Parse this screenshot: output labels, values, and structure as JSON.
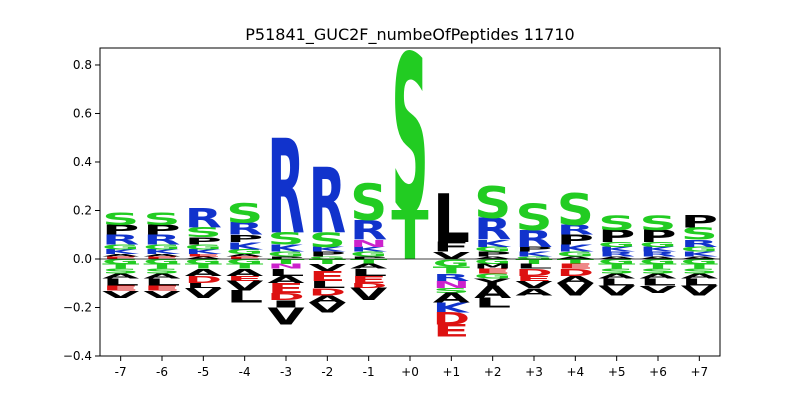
{
  "chart_data": {
    "type": "sequence-logo",
    "title": "P51841_GUC2F_numbeOfPeptides 11710",
    "xlabel": "",
    "ylabel": "",
    "ylim": [
      -0.4,
      0.87
    ],
    "yticks": [
      -0.4,
      -0.2,
      0.0,
      0.2,
      0.4,
      0.6,
      0.8
    ],
    "ytick_labels": [
      "−0.4",
      "−0.2",
      "0.0",
      "0.2",
      "0.4",
      "0.6",
      "0.8"
    ],
    "categories": [
      "-7",
      "-6",
      "-5",
      "-4",
      "-3",
      "-2",
      "-1",
      "+0",
      "+1",
      "+2",
      "+3",
      "+4",
      "+5",
      "+6",
      "+7"
    ],
    "grid": false,
    "legend": "none",
    "colors": {
      "S": "#22cc22",
      "T": "#22cc22",
      "G": "#22cc22",
      "R": "#1133cc",
      "K": "#1133cc",
      "H": "#1133cc",
      "D": "#dd1111",
      "E": "#dd1111",
      "N": "#cc22cc",
      "Q": "#cc22cc",
      "P": "#000000",
      "L": "#000000",
      "V": "#000000",
      "A": "#000000",
      "I": "#000000",
      "M": "#000000",
      "F": "#000000",
      "W": "#000000",
      "Y": "#000000",
      "C": "#000000"
    },
    "positions": [
      {
        "label": "-7",
        "pos": [
          [
            "S",
            0.05
          ],
          [
            "R",
            0.04
          ],
          [
            "P",
            0.04
          ],
          [
            "K",
            0.02
          ],
          [
            "G",
            0.02
          ],
          [
            "E",
            0.01
          ],
          [
            "A",
            0.01
          ]
        ],
        "neg": [
          [
            "G",
            0.02
          ],
          [
            "T",
            0.02
          ],
          [
            "S",
            0.02
          ],
          [
            "A",
            0.02
          ],
          [
            "L",
            0.03
          ],
          [
            "E",
            0.02
          ],
          [
            "V",
            0.03
          ]
        ]
      },
      {
        "label": "-6",
        "pos": [
          [
            "S",
            0.05
          ],
          [
            "R",
            0.04
          ],
          [
            "P",
            0.04
          ],
          [
            "K",
            0.02
          ],
          [
            "G",
            0.02
          ],
          [
            "E",
            0.01
          ],
          [
            "A",
            0.01
          ]
        ],
        "neg": [
          [
            "G",
            0.02
          ],
          [
            "T",
            0.02
          ],
          [
            "S",
            0.02
          ],
          [
            "A",
            0.02
          ],
          [
            "L",
            0.03
          ],
          [
            "E",
            0.02
          ],
          [
            "V",
            0.03
          ]
        ]
      },
      {
        "label": "-5",
        "pos": [
          [
            "R",
            0.08
          ],
          [
            "S",
            0.04
          ],
          [
            "P",
            0.03
          ],
          [
            "K",
            0.02
          ],
          [
            "G",
            0.02
          ],
          [
            "A",
            0.01
          ],
          [
            "E",
            0.01
          ]
        ],
        "neg": [
          [
            "G",
            0.02
          ],
          [
            "T",
            0.02
          ],
          [
            "A",
            0.03
          ],
          [
            "D",
            0.03
          ],
          [
            "L",
            0.02
          ],
          [
            "V",
            0.04
          ]
        ]
      },
      {
        "label": "-4",
        "pos": [
          [
            "S",
            0.08
          ],
          [
            "R",
            0.05
          ],
          [
            "K",
            0.03
          ],
          [
            "P",
            0.03
          ],
          [
            "G",
            0.02
          ],
          [
            "E",
            0.01
          ],
          [
            "A",
            0.01
          ]
        ],
        "neg": [
          [
            "G",
            0.02
          ],
          [
            "T",
            0.02
          ],
          [
            "A",
            0.03
          ],
          [
            "E",
            0.02
          ],
          [
            "V",
            0.04
          ],
          [
            "L",
            0.05
          ]
        ]
      },
      {
        "label": "-3",
        "pos": [
          [
            "R",
            0.39
          ],
          [
            "S",
            0.05
          ],
          [
            "K",
            0.03
          ],
          [
            "G",
            0.02
          ],
          [
            "P",
            0.01
          ]
        ],
        "neg": [
          [
            "T",
            0.02
          ],
          [
            "N",
            0.02
          ],
          [
            "L",
            0.03
          ],
          [
            "A",
            0.03
          ],
          [
            "E",
            0.04
          ],
          [
            "D",
            0.03
          ],
          [
            "I",
            0.03
          ],
          [
            "V",
            0.07
          ]
        ]
      },
      {
        "label": "-2",
        "pos": [
          [
            "R",
            0.27
          ],
          [
            "S",
            0.06
          ],
          [
            "P",
            0.02
          ],
          [
            "K",
            0.02
          ],
          [
            "G",
            0.01
          ]
        ],
        "neg": [
          [
            "T",
            0.02
          ],
          [
            "V",
            0.03
          ],
          [
            "E",
            0.04
          ],
          [
            "L",
            0.03
          ],
          [
            "D",
            0.03
          ],
          [
            "A",
            0.03
          ],
          [
            "V",
            0.04
          ]
        ]
      },
      {
        "label": "-1",
        "pos": [
          [
            "S",
            0.15
          ],
          [
            "R",
            0.08
          ],
          [
            "N",
            0.03
          ],
          [
            "G",
            0.02
          ],
          [
            "K",
            0.02
          ],
          [
            "P",
            0.01
          ]
        ],
        "neg": [
          [
            "T",
            0.02
          ],
          [
            "A",
            0.02
          ],
          [
            "L",
            0.03
          ],
          [
            "E",
            0.03
          ],
          [
            "D",
            0.02
          ],
          [
            "V",
            0.05
          ]
        ]
      },
      {
        "label": "+0",
        "pos": [
          [
            "S",
            0.65
          ],
          [
            "T",
            0.2
          ]
        ],
        "neg": []
      },
      {
        "label": "+1",
        "pos": [
          [
            "L",
            0.2
          ],
          [
            "F",
            0.04
          ],
          [
            "V",
            0.03
          ]
        ],
        "neg": [
          [
            "G",
            0.03
          ],
          [
            "T",
            0.03
          ],
          [
            "R",
            0.03
          ],
          [
            "N",
            0.03
          ],
          [
            "S",
            0.02
          ],
          [
            "A",
            0.04
          ],
          [
            "K",
            0.04
          ],
          [
            "D",
            0.05
          ],
          [
            "E",
            0.05
          ]
        ]
      },
      {
        "label": "+2",
        "pos": [
          [
            "S",
            0.13
          ],
          [
            "R",
            0.09
          ],
          [
            "K",
            0.03
          ],
          [
            "P",
            0.02
          ],
          [
            "G",
            0.02
          ],
          [
            "A",
            0.01
          ]
        ],
        "neg": [
          [
            "G",
            0.02
          ],
          [
            "M",
            0.02
          ],
          [
            "E",
            0.02
          ],
          [
            "G",
            0.02
          ],
          [
            "Y",
            0.03
          ],
          [
            "A",
            0.05
          ],
          [
            "L",
            0.04
          ]
        ]
      },
      {
        "label": "+3",
        "pos": [
          [
            "S",
            0.11
          ],
          [
            "R",
            0.07
          ],
          [
            "K",
            0.02
          ],
          [
            "P",
            0.02
          ],
          [
            "G",
            0.01
          ]
        ],
        "neg": [
          [
            "T",
            0.02
          ],
          [
            "L",
            0.02
          ],
          [
            "D",
            0.03
          ],
          [
            "E",
            0.02
          ],
          [
            "V",
            0.03
          ],
          [
            "A",
            0.03
          ]
        ]
      },
      {
        "label": "+4",
        "pos": [
          [
            "S",
            0.13
          ],
          [
            "P",
            0.04
          ],
          [
            "R",
            0.04
          ],
          [
            "K",
            0.03
          ],
          [
            "G",
            0.02
          ],
          [
            "A",
            0.01
          ]
        ],
        "neg": [
          [
            "T",
            0.02
          ],
          [
            "E",
            0.02
          ],
          [
            "D",
            0.03
          ],
          [
            "A",
            0.03
          ],
          [
            "V",
            0.05
          ]
        ]
      },
      {
        "label": "+5",
        "pos": [
          [
            "S",
            0.06
          ],
          [
            "P",
            0.05
          ],
          [
            "R",
            0.02
          ],
          [
            "K",
            0.02
          ],
          [
            "G",
            0.02
          ],
          [
            "A",
            0.01
          ]
        ],
        "neg": [
          [
            "G",
            0.02
          ],
          [
            "T",
            0.02
          ],
          [
            "S",
            0.02
          ],
          [
            "A",
            0.02
          ],
          [
            "L",
            0.03
          ],
          [
            "V",
            0.04
          ]
        ]
      },
      {
        "label": "+6",
        "pos": [
          [
            "S",
            0.06
          ],
          [
            "P",
            0.05
          ],
          [
            "R",
            0.02
          ],
          [
            "K",
            0.02
          ],
          [
            "G",
            0.02
          ],
          [
            "A",
            0.01
          ]
        ],
        "neg": [
          [
            "G",
            0.02
          ],
          [
            "T",
            0.02
          ],
          [
            "S",
            0.02
          ],
          [
            "A",
            0.02
          ],
          [
            "L",
            0.03
          ],
          [
            "V",
            0.03
          ]
        ]
      },
      {
        "label": "+7",
        "pos": [
          [
            "S",
            0.05
          ],
          [
            "P",
            0.05
          ],
          [
            "R",
            0.03
          ],
          [
            "K",
            0.02
          ],
          [
            "G",
            0.02
          ],
          [
            "A",
            0.01
          ]
        ],
        "neg": [
          [
            "G",
            0.02
          ],
          [
            "T",
            0.02
          ],
          [
            "S",
            0.02
          ],
          [
            "A",
            0.02
          ],
          [
            "L",
            0.03
          ],
          [
            "V",
            0.04
          ]
        ]
      }
    ]
  }
}
